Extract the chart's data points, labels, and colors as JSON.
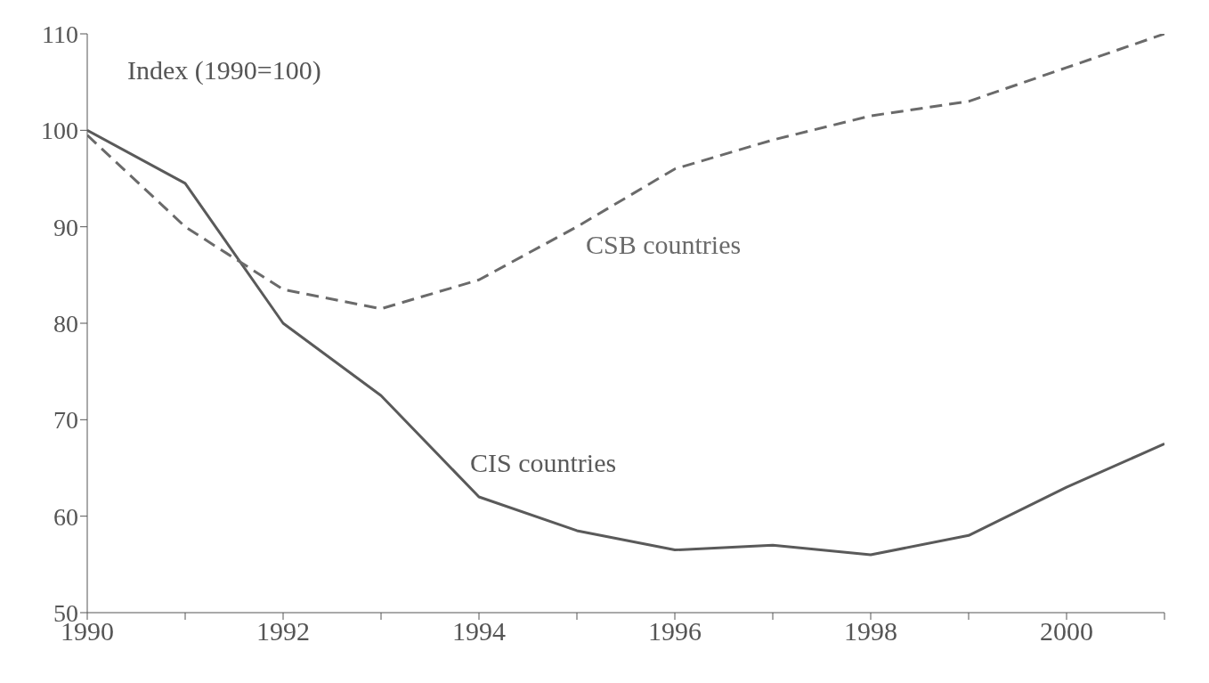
{
  "chart_data": {
    "type": "line",
    "ylabel": "Index (1990=100)",
    "x": [
      1990,
      1991,
      1992,
      1993,
      1994,
      1995,
      1996,
      1997,
      1998,
      1999,
      2000,
      2001
    ],
    "series": [
      {
        "name": "CIS countries",
        "color": "#5a5a5a",
        "line_style": "solid",
        "values": [
          100,
          94.5,
          80,
          72.5,
          62,
          58.5,
          56.5,
          57,
          56,
          58,
          63,
          67.5
        ]
      },
      {
        "name": "CSB countries",
        "color": "#6a6a6a",
        "line_style": "dashed",
        "values": [
          99.5,
          90,
          83.5,
          81.5,
          84.5,
          90,
          96,
          99,
          101.5,
          103,
          106.5,
          110
        ]
      }
    ],
    "xlim": [
      1990,
      2001
    ],
    "xticks": [
      1990,
      {
        "value": 1991,
        "label": null
      },
      1992,
      {
        "value": 1993,
        "label": null
      },
      1994,
      {
        "value": 1995,
        "label": null
      },
      1996,
      {
        "value": 1997,
        "label": null
      },
      1998,
      {
        "value": 1999,
        "label": null
      },
      2000,
      {
        "value": 2001,
        "label": null
      }
    ],
    "ylim": [
      50,
      110
    ],
    "yticks": [
      50,
      60,
      70,
      80,
      90,
      100,
      110
    ],
    "grid": false,
    "legend": false,
    "marker": "none"
  }
}
